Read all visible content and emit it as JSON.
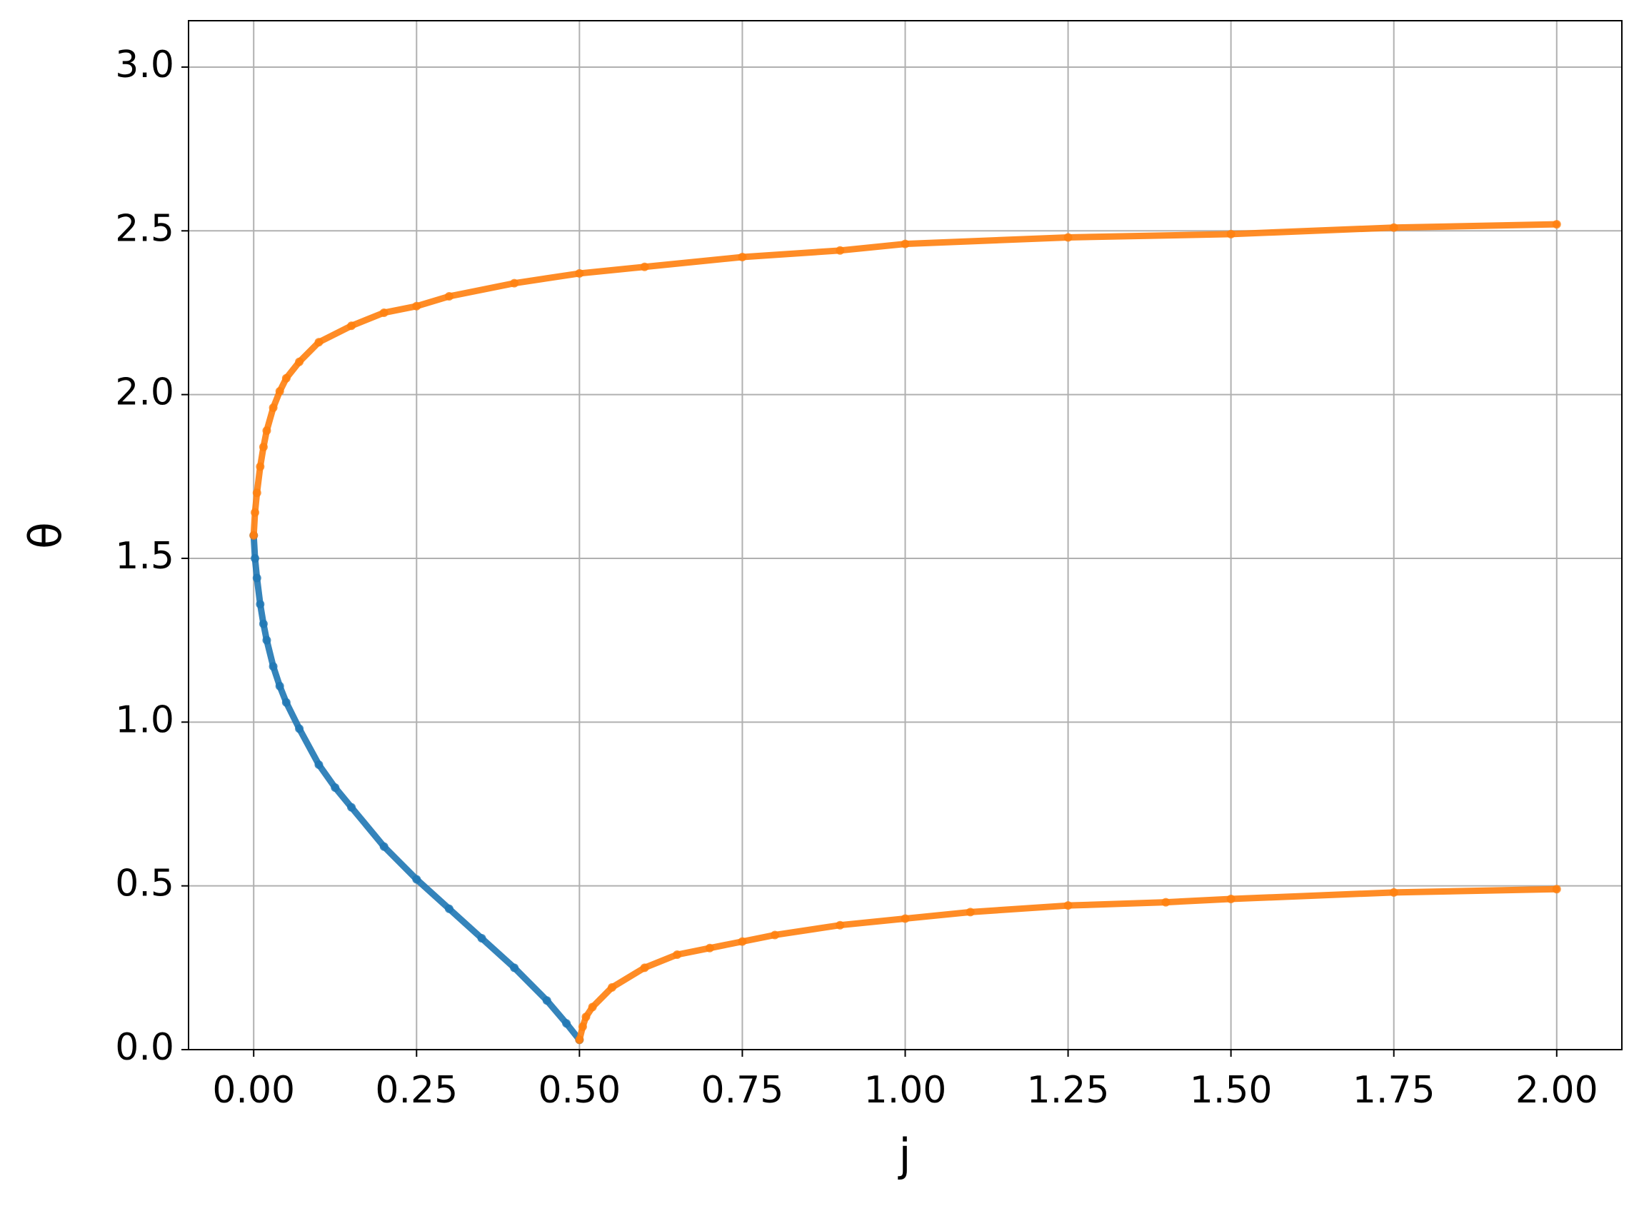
{
  "chart_data": {
    "type": "scatter",
    "xlabel": "j",
    "ylabel": "θ",
    "xlim": [
      -0.1,
      2.1
    ],
    "ylim": [
      0,
      3.14159
    ],
    "xticks": [
      {
        "value": 0,
        "label": "0.00"
      },
      {
        "value": 0.25,
        "label": "0.25"
      },
      {
        "value": 0.5,
        "label": "0.50"
      },
      {
        "value": 0.75,
        "label": "0.75"
      },
      {
        "value": 1,
        "label": "1.00"
      },
      {
        "value": 1.25,
        "label": "1.25"
      },
      {
        "value": 1.5,
        "label": "1.50"
      },
      {
        "value": 1.75,
        "label": "1.75"
      },
      {
        "value": 2,
        "label": "2.00"
      }
    ],
    "yticks": [
      {
        "value": 0,
        "label": "0.0"
      },
      {
        "value": 0.5,
        "label": "0.5"
      },
      {
        "value": 1,
        "label": "1.0"
      },
      {
        "value": 1.5,
        "label": "1.5"
      },
      {
        "value": 2,
        "label": "2.0"
      },
      {
        "value": 2.5,
        "label": "2.5"
      },
      {
        "value": 3,
        "label": "3.0"
      }
    ],
    "grid": true,
    "series": [
      {
        "color": "#1f77b4",
        "x": [
          0,
          0.002,
          0.005,
          0.01,
          0.015,
          0.02,
          0.03,
          0.04,
          0.05,
          0.07,
          0.1,
          0.125,
          0.15,
          0.2,
          0.25,
          0.3,
          0.35,
          0.4,
          0.45,
          0.48,
          0.5
        ],
        "values": [
          1.57,
          1.5,
          1.44,
          1.36,
          1.3,
          1.25,
          1.17,
          1.11,
          1.06,
          0.98,
          0.87,
          0.8,
          0.74,
          0.62,
          0.52,
          0.43,
          0.34,
          0.25,
          0.15,
          0.08,
          0.03
        ]
      },
      {
        "color": "#ff7f0e",
        "x": [
          0,
          0.002,
          0.005,
          0.01,
          0.015,
          0.02,
          0.03,
          0.04,
          0.05,
          0.07,
          0.1,
          0.15,
          0.2,
          0.25,
          0.3,
          0.4,
          0.5,
          0.6,
          0.75,
          0.9,
          1.0,
          1.25,
          1.5,
          1.75,
          2.0
        ],
        "values": [
          1.57,
          1.64,
          1.7,
          1.78,
          1.84,
          1.89,
          1.96,
          2.01,
          2.05,
          2.1,
          2.16,
          2.21,
          2.25,
          2.27,
          2.3,
          2.34,
          2.37,
          2.39,
          2.42,
          2.44,
          2.46,
          2.48,
          2.49,
          2.51,
          2.52
        ]
      },
      {
        "color": "#ff7f0e",
        "x": [
          0.5,
          0.505,
          0.51,
          0.52,
          0.55,
          0.6,
          0.65,
          0.7,
          0.75,
          0.8,
          0.9,
          1.0,
          1.1,
          1.25,
          1.4,
          1.5,
          1.75,
          2.0
        ],
        "values": [
          0.03,
          0.07,
          0.1,
          0.13,
          0.19,
          0.25,
          0.29,
          0.31,
          0.33,
          0.35,
          0.38,
          0.4,
          0.42,
          0.44,
          0.45,
          0.46,
          0.48,
          0.49
        ]
      }
    ]
  }
}
